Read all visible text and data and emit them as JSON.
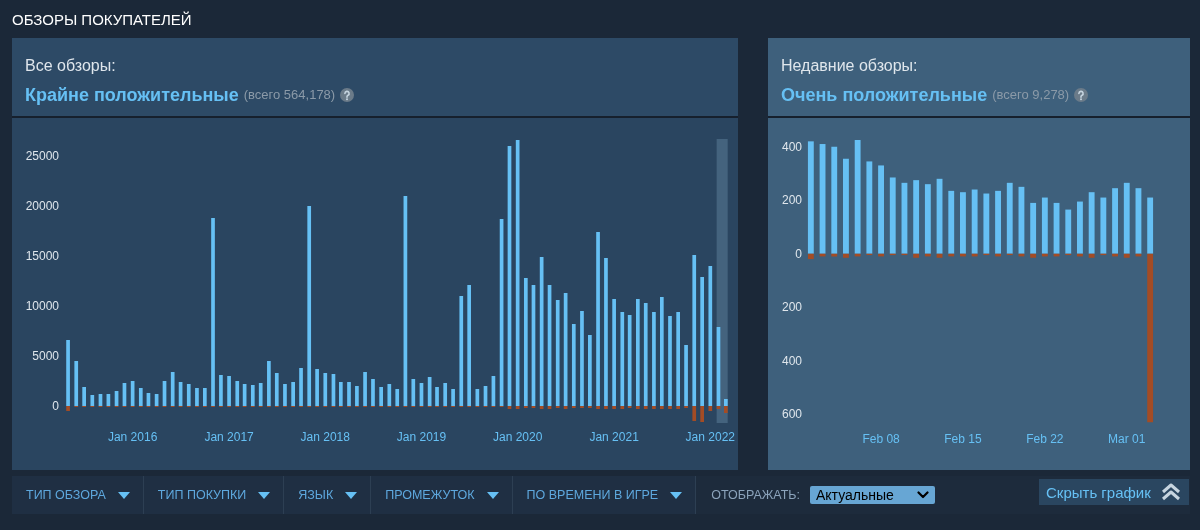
{
  "chart_data": [
    {
      "type": "other",
      "title": "ОБЗОРЫ ПОКУПАТЕЛЕЙ",
      "annotations": [
        "ТИП ОБЗОРА",
        "ТИП ПОКУПКИ",
        "ЯЗЫК",
        "ПРОМЕЖУТОК",
        "ПО ВРЕМЕНИ В ИГРЕ",
        "ОТОБРАЖАТЬ:",
        "Актуальные",
        "Скрыть график"
      ]
    },
    {
      "type": "bar",
      "title": "Все обзоры:",
      "subtitle": "Крайне положительные",
      "annotations": [
        "(всего 564,178)"
      ],
      "x": [
        "2015-05",
        "2015-06",
        "2015-07",
        "2015-08",
        "2015-09",
        "2015-10",
        "2015-11",
        "2015-12",
        "2016-01",
        "2016-02",
        "2016-03",
        "2016-04",
        "2016-05",
        "2016-06",
        "2016-07",
        "2016-08",
        "2016-09",
        "2016-10",
        "2016-11",
        "2016-12",
        "2017-01",
        "2017-02",
        "2017-03",
        "2017-04",
        "2017-05",
        "2017-06",
        "2017-07",
        "2017-08",
        "2017-09",
        "2017-10",
        "2017-11",
        "2017-12",
        "2018-01",
        "2018-02",
        "2018-03",
        "2018-04",
        "2018-05",
        "2018-06",
        "2018-07",
        "2018-08",
        "2018-09",
        "2018-10",
        "2018-11",
        "2018-12",
        "2019-01",
        "2019-02",
        "2019-03",
        "2019-04",
        "2019-05",
        "2019-06",
        "2019-07",
        "2019-08",
        "2019-09",
        "2019-10",
        "2019-11",
        "2019-12",
        "2020-01",
        "2020-02",
        "2020-03",
        "2020-04",
        "2020-05",
        "2020-06",
        "2020-07",
        "2020-08",
        "2020-09",
        "2020-10",
        "2020-11",
        "2020-12",
        "2021-01",
        "2021-02",
        "2021-03",
        "2021-04",
        "2021-05",
        "2021-06",
        "2021-07",
        "2021-08",
        "2021-09",
        "2021-10",
        "2021-11",
        "2021-12",
        "2022-01",
        "2022-02",
        "2022-03"
      ],
      "stacked": true,
      "series": [
        {
          "color": "#66c0f4",
          "values": [
            6600,
            4500,
            1900,
            1100,
            1200,
            1200,
            1500,
            2300,
            2500,
            1800,
            1300,
            1200,
            2500,
            3400,
            2400,
            2200,
            1800,
            1800,
            18800,
            3100,
            3000,
            2500,
            2200,
            2100,
            2300,
            4500,
            3300,
            2200,
            2400,
            3800,
            20000,
            3700,
            3300,
            3200,
            2400,
            2400,
            2000,
            3400,
            2700,
            1900,
            2200,
            1700,
            21000,
            2700,
            2300,
            2900,
            1900,
            2300,
            1700,
            11000,
            12100,
            1700,
            2000,
            3000,
            18700,
            26000,
            26600,
            12800,
            12100,
            14900,
            12100,
            10600,
            11300,
            8200,
            9500,
            7100,
            17400,
            14800,
            10700,
            9400,
            9100,
            10700,
            10300,
            9400,
            10900,
            9000,
            9400,
            6100,
            15100,
            12900,
            14000,
            7900,
            700
          ]
        },
        {
          "color": "#a34c25",
          "values": [
            -500,
            -100,
            -100,
            -100,
            -100,
            -100,
            -100,
            -100,
            -100,
            -100,
            -100,
            -100,
            -100,
            -100,
            -100,
            -100,
            -100,
            -100,
            -100,
            -100,
            -100,
            -100,
            -100,
            -100,
            -100,
            -100,
            -100,
            -100,
            -100,
            -100,
            -100,
            -100,
            -100,
            -100,
            -100,
            -100,
            -100,
            -100,
            -100,
            -100,
            -100,
            -100,
            -100,
            -100,
            -100,
            -100,
            -100,
            -100,
            -100,
            -100,
            -100,
            -100,
            -100,
            -100,
            -100,
            -300,
            -300,
            -200,
            -200,
            -300,
            -300,
            -200,
            -300,
            -200,
            -200,
            -200,
            -300,
            -300,
            -300,
            -300,
            -200,
            -300,
            -300,
            -300,
            -300,
            -300,
            -300,
            -200,
            -1500,
            -1600,
            -500,
            -300,
            -700
          ]
        }
      ],
      "xlim": [
        "2015-04-08",
        "2022-03-27"
      ],
      "xticks": [
        {
          "value": "2016-01",
          "label": "Jan 2016"
        },
        {
          "value": "2017-01",
          "label": "Jan 2017"
        },
        {
          "value": "2018-01",
          "label": "Jan 2018"
        },
        {
          "value": "2019-01",
          "label": "Jan 2019"
        },
        {
          "value": "2020-01",
          "label": "Jan 2020"
        },
        {
          "value": "2021-01",
          "label": "Jan 2021"
        },
        {
          "value": "2022-01",
          "label": "Jan 2022"
        }
      ],
      "ylim": [
        -1700,
        26700
      ],
      "yticks": [
        0,
        5000,
        10000,
        15000,
        20000,
        25000
      ],
      "bands": [
        {
          "axis": "x",
          "from": "2022-01-25",
          "to": "2022-03-08",
          "color": "#44637e"
        }
      ]
    },
    {
      "type": "bar",
      "title": "Недавние обзоры:",
      "subtitle": "Очень положительные",
      "annotations": [
        "(всего 9,278)"
      ],
      "x": [
        "--02-02",
        "--02-03",
        "--02-04",
        "--02-05",
        "--02-06",
        "--02-07",
        "--02-08",
        "--02-09",
        "--02-10",
        "--02-11",
        "--02-12",
        "--02-13",
        "--02-14",
        "--02-15",
        "--02-16",
        "--02-17",
        "--02-18",
        "--02-19",
        "--02-20",
        "--02-21",
        "--02-22",
        "--02-23",
        "--02-24",
        "--02-25",
        "--02-26",
        "--02-27",
        "--02-28",
        "--03-01",
        "--03-02",
        "--03-03"
      ],
      "stacked": true,
      "series": [
        {
          "color": "#66c0f4",
          "values": [
            420,
            410,
            400,
            355,
            425,
            345,
            330,
            285,
            265,
            275,
            260,
            280,
            235,
            230,
            240,
            225,
            235,
            265,
            250,
            190,
            210,
            190,
            165,
            195,
            230,
            210,
            245,
            265,
            245,
            210
          ]
        },
        {
          "color": "#a34c25",
          "values": [
            -20,
            -10,
            -10,
            -15,
            -10,
            -5,
            -10,
            -5,
            -5,
            -15,
            -10,
            -15,
            -10,
            -10,
            -10,
            -5,
            -10,
            -5,
            -10,
            -15,
            -10,
            -10,
            -5,
            -10,
            -15,
            -5,
            -10,
            -15,
            -10,
            -630
          ]
        }
      ],
      "xlim": [
        "--02-01T12:00",
        "--03-03T12:00"
      ],
      "xticks": [
        {
          "value": "--02-08",
          "label": "Feb 08"
        },
        {
          "value": "--02-15",
          "label": "Feb 15"
        },
        {
          "value": "--02-22",
          "label": "Feb 22"
        },
        {
          "value": "--03-01",
          "label": "Mar 01"
        }
      ],
      "ylim": [
        -640,
        440
      ],
      "yticks": [
        400,
        200,
        0,
        {
          "value": -200,
          "label": "200"
        },
        {
          "value": -400,
          "label": "400"
        },
        {
          "value": -600,
          "label": "600"
        }
      ]
    }
  ]
}
